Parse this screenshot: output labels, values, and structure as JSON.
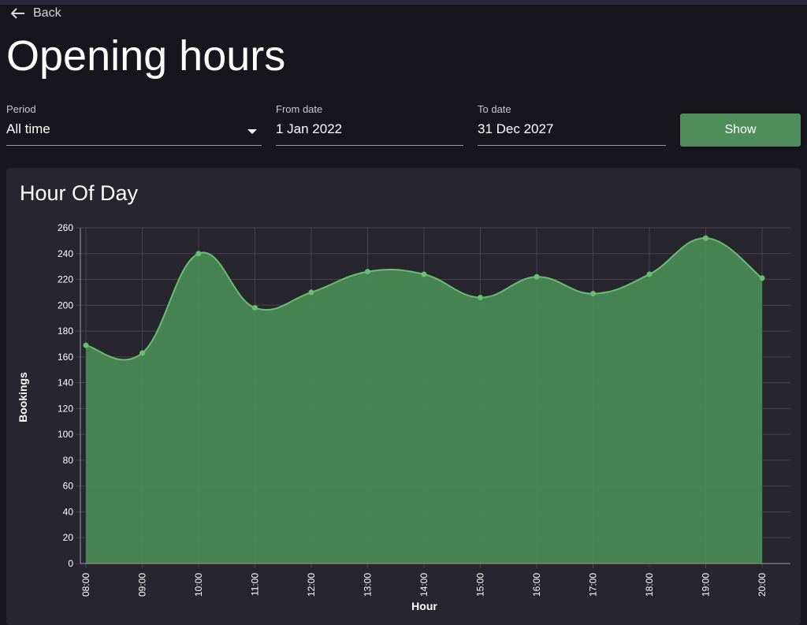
{
  "nav": {
    "back_label": "Back"
  },
  "page": {
    "title": "Opening hours"
  },
  "filters": {
    "period": {
      "label": "Period",
      "value": "All time"
    },
    "from_date": {
      "label": "From date",
      "value": "1 Jan 2022"
    },
    "to_date": {
      "label": "To date",
      "value": "31 Dec 2027"
    },
    "show_label": "Show"
  },
  "card": {
    "title": "Hour Of Day"
  },
  "colors": {
    "background": "#17161d",
    "card": "#27262e",
    "accent": "#4f8d5b",
    "line": "#66c070",
    "fill": "#4a8a56"
  },
  "chart_data": {
    "type": "area",
    "title": "Hour Of Day",
    "xlabel": "Hour",
    "ylabel": "Bookings",
    "categories": [
      "08:00",
      "09:00",
      "10:00",
      "11:00",
      "12:00",
      "13:00",
      "14:00",
      "15:00",
      "16:00",
      "17:00",
      "18:00",
      "19:00",
      "20:00"
    ],
    "values": [
      169,
      163,
      240,
      198,
      210,
      226,
      224,
      206,
      222,
      209,
      224,
      252,
      221
    ],
    "ylim": [
      0,
      260
    ],
    "yticks": [
      0,
      20,
      40,
      60,
      80,
      100,
      120,
      140,
      160,
      180,
      200,
      220,
      240,
      260
    ],
    "grid": true,
    "smooth": true
  }
}
